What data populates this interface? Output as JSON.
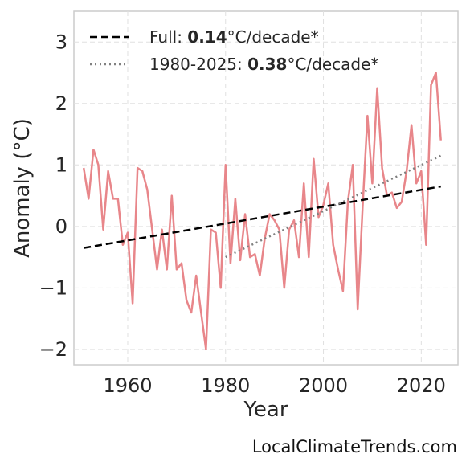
{
  "chart_data": {
    "type": "line",
    "xlabel": "Year",
    "ylabel": "Anomaly (°C)",
    "xlim": [
      1949,
      2027.5
    ],
    "ylim": [
      -2.25,
      3.5
    ],
    "x_ticks": [
      1960,
      1980,
      2000,
      2020
    ],
    "y_ticks": [
      3,
      2,
      1,
      0,
      -1,
      -2
    ],
    "y_tick_labels": [
      "3",
      "2",
      "1",
      "0",
      "−1",
      "−2"
    ],
    "grid": true,
    "legend_position": "top-left",
    "series": [
      {
        "style": "solid",
        "color": "#e8868a",
        "x": [
          1951,
          1952,
          1953,
          1954,
          1955,
          1956,
          1957,
          1958,
          1959,
          1960,
          1961,
          1962,
          1963,
          1964,
          1965,
          1966,
          1967,
          1968,
          1969,
          1970,
          1971,
          1972,
          1973,
          1974,
          1975,
          1976,
          1977,
          1978,
          1979,
          1980,
          1981,
          1982,
          1983,
          1984,
          1985,
          1986,
          1987,
          1988,
          1989,
          1990,
          1991,
          1992,
          1993,
          1994,
          1995,
          1996,
          1997,
          1998,
          1999,
          2000,
          2001,
          2002,
          2003,
          2004,
          2005,
          2006,
          2007,
          2008,
          2009,
          2010,
          2011,
          2012,
          2013,
          2014,
          2015,
          2016,
          2017,
          2018,
          2019,
          2020,
          2021,
          2022,
          2023,
          2024
        ],
        "y": [
          0.95,
          0.45,
          1.25,
          1.0,
          -0.05,
          0.9,
          0.45,
          0.45,
          -0.3,
          -0.1,
          -1.25,
          0.95,
          0.9,
          0.6,
          -0.05,
          -0.7,
          -0.05,
          -0.7,
          0.5,
          -0.7,
          -0.6,
          -1.2,
          -1.4,
          -0.8,
          -1.4,
          -2.0,
          -0.05,
          -0.1,
          -1.0,
          1.0,
          -0.6,
          0.45,
          -0.55,
          0.2,
          -0.5,
          -0.45,
          -0.8,
          -0.2,
          0.2,
          0.1,
          -0.05,
          -1.0,
          -0.05,
          0.1,
          -0.5,
          0.7,
          -0.5,
          1.1,
          0.15,
          0.35,
          0.7,
          -0.3,
          -0.7,
          -1.05,
          0.4,
          1.0,
          -1.35,
          0.3,
          1.8,
          0.7,
          2.25,
          0.95,
          0.5,
          0.55,
          0.3,
          0.4,
          0.9,
          1.65,
          0.7,
          0.9,
          -0.3,
          2.3,
          2.5,
          1.4
        ]
      }
    ],
    "trend_lines": [
      {
        "legend": "Full",
        "rate": "0.14",
        "unit": "°C/decade*",
        "style": "dashed",
        "color": "#000000",
        "x": [
          1951,
          2024
        ],
        "y": [
          -0.35,
          0.65
        ]
      },
      {
        "legend": "1980-2025",
        "rate": "0.38",
        "unit": "°C/decade*",
        "style": "dotted",
        "color": "#808080",
        "x": [
          1980,
          2024
        ],
        "y": [
          -0.5,
          1.15
        ]
      }
    ]
  },
  "legend": {
    "full": {
      "prefix": "Full: ",
      "value": "0.14",
      "suffix": "°C/decade*"
    },
    "recent": {
      "prefix": "1980-2025: ",
      "value": "0.38",
      "suffix": "°C/decade*"
    }
  },
  "credit": "LocalClimateTrends.com"
}
